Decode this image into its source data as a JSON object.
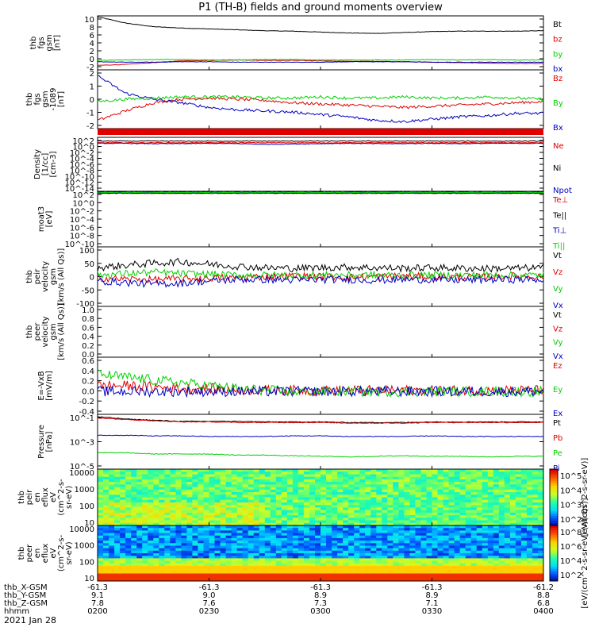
{
  "title": "P1 (TH-B) fields and ground moments overview",
  "date": "2021 Jan 28",
  "colors": {
    "black": "#000000",
    "red": "#e00000",
    "green": "#00d000",
    "blue": "#0000c0",
    "magenta": "#c000c0",
    "axis": "#000000"
  },
  "chart_data": [
    {
      "type": "line",
      "id": "p1",
      "ylabel": [
        "thb",
        "fgs",
        "gsm",
        "[nT]"
      ],
      "yticks": [
        "10",
        "8",
        "6",
        "4",
        "2",
        "0",
        "-2"
      ],
      "ylim": [
        -2,
        10
      ],
      "series": [
        {
          "name": "Bt",
          "color": "black",
          "values": [
            9.8,
            8.4,
            7.6,
            7.3,
            7.1,
            6.9,
            6.7,
            6.6,
            6.4,
            6.2,
            6.1,
            6.3,
            6.5,
            6.6,
            6.6,
            6.6,
            6.7
          ]
        },
        {
          "name": "bz",
          "color": "red",
          "values": [
            -1.0,
            -0.8,
            -0.4,
            0.0,
            0.1,
            0.2,
            0.1,
            0.1,
            0.0,
            -0.1,
            -0.1,
            -0.2,
            -0.3,
            -0.4,
            -0.5,
            -0.6,
            -0.6
          ]
        },
        {
          "name": "by",
          "color": "green",
          "values": [
            0.1,
            0.2,
            0.3,
            0.3,
            0.2,
            0.2,
            0.3,
            0.3,
            0.2,
            0.2,
            0.2,
            0.2,
            0.3,
            0.2,
            0.3,
            0.2,
            0.2
          ]
        },
        {
          "name": "bx",
          "color": "blue",
          "values": [
            -0.2,
            -0.3,
            -0.3,
            -0.2,
            -0.2,
            -0.3,
            -0.3,
            -0.3,
            -0.3,
            -0.2,
            -0.2,
            -0.2,
            -0.3,
            -0.3,
            -0.3,
            -0.3,
            -0.3
          ]
        }
      ]
    },
    {
      "type": "line",
      "id": "p2",
      "ylabel": [
        "thb",
        "fgs",
        "gsm",
        "-1089",
        "[nT]"
      ],
      "yticks": [
        "2",
        "1",
        "0",
        "-1",
        "-2"
      ],
      "ylim": [
        -2.5,
        2.5
      ],
      "series": [
        {
          "name": "Bz",
          "color": "red",
          "values": [
            -1.8,
            -1.0,
            -0.3,
            0.0,
            0.1,
            0.0,
            -0.1,
            -0.3,
            -0.4,
            -0.5,
            -0.6,
            -0.7,
            -0.6,
            -0.5,
            -0.4,
            -0.3,
            -0.2
          ]
        },
        {
          "name": "By",
          "color": "green",
          "values": [
            -0.2,
            0.0,
            0.1,
            0.2,
            0.2,
            0.2,
            0.1,
            0.1,
            0.2,
            0.1,
            0.1,
            0.2,
            0.1,
            0.1,
            0.2,
            0.1,
            0.0
          ]
        },
        {
          "name": "Bx",
          "color": "blue",
          "values": [
            2.0,
            0.5,
            0.0,
            -0.3,
            -0.7,
            -0.9,
            -1.0,
            -1.1,
            -1.3,
            -1.5,
            -1.8,
            -1.9,
            -1.7,
            -1.5,
            -1.4,
            -1.2,
            -1.2
          ]
        }
      ]
    },
    {
      "type": "line",
      "id": "p3",
      "ylabel": [
        "Density",
        "[1/cc]",
        "[cm-3]"
      ],
      "yticks": [
        "10^2",
        "10^0",
        "10^-2",
        "10^-4",
        "10^-6",
        "10^-8",
        "10^-10",
        "10^-12",
        "10^-14"
      ],
      "ylim": [
        -15,
        2
      ],
      "log": true,
      "series": [
        {
          "name": "Ne",
          "color": "red",
          "values": [
            0.3,
            0.3,
            0.3,
            0.3,
            0.3,
            0.3,
            0.3,
            0.3,
            0.3,
            0.3,
            0.3,
            0.3,
            0.3,
            0.3,
            0.3,
            0.3,
            0.3
          ]
        },
        {
          "name": "Ni",
          "color": "black",
          "values": [
            0.8,
            0.8,
            0.8,
            0.8,
            0.8,
            0.8,
            0.8,
            0.8,
            0.8,
            0.8,
            0.8,
            0.8,
            0.8,
            0.8,
            0.8,
            0.8,
            0.8
          ]
        },
        {
          "name": "Npot",
          "color": "blue",
          "values": [
            0.1,
            0.1,
            0.0,
            0.0,
            0.1,
            0.0,
            -0.2,
            -0.1,
            0.0,
            0.1,
            0.0,
            0.0,
            0.1,
            0.0,
            0.1,
            0.1,
            0.1
          ]
        }
      ]
    },
    {
      "type": "line",
      "id": "p4",
      "ylabel": [
        "moat3",
        "[eV]"
      ],
      "yticks": [
        "10^2",
        "10^0",
        "10^-2",
        "10^-4",
        "10^-6",
        "10^-8",
        "10^-10"
      ],
      "ylim": [
        -10,
        3
      ],
      "log": true,
      "series": [
        {
          "name": "Te⊥",
          "color": "red",
          "values": [
            2.5,
            2.5,
            2.5,
            2.5,
            2.5,
            2.5,
            2.5,
            2.5,
            2.5,
            2.5,
            2.5,
            2.5,
            2.5,
            2.5,
            2.5,
            2.5,
            2.5
          ]
        },
        {
          "name": "Te||",
          "color": "black",
          "values": [
            2.6,
            2.6,
            2.6,
            2.6,
            2.6,
            2.6,
            2.6,
            2.6,
            2.6,
            2.6,
            2.6,
            2.6,
            2.6,
            2.6,
            2.6,
            2.6,
            2.6
          ]
        },
        {
          "name": "Ti⊥",
          "color": "blue",
          "values": [
            2.8,
            2.8,
            2.8,
            2.8,
            2.8,
            2.8,
            2.8,
            2.8,
            2.8,
            2.8,
            2.8,
            2.8,
            2.8,
            2.8,
            2.8,
            2.8,
            2.8
          ]
        },
        {
          "name": "Ti||",
          "color": "green",
          "values": [
            2.7,
            2.7,
            2.7,
            2.7,
            2.7,
            2.7,
            2.7,
            2.7,
            2.7,
            2.7,
            2.7,
            2.7,
            2.7,
            2.7,
            2.7,
            2.7,
            2.7
          ]
        }
      ]
    },
    {
      "type": "line",
      "id": "p5",
      "ylabel": [
        "thb",
        "peir",
        "velocity",
        "gsm",
        "[km/s (All Qs)]"
      ],
      "yticks": [
        "100",
        "50",
        "0",
        "-50",
        "-100"
      ],
      "ylim": [
        -100,
        100
      ],
      "series": [
        {
          "name": "Vt",
          "color": "black",
          "values": [
            30,
            38,
            45,
            50,
            42,
            35,
            30,
            28,
            30,
            32,
            30,
            28,
            30,
            28,
            27,
            28,
            30
          ]
        },
        {
          "name": "Vz",
          "color": "red",
          "values": [
            -5,
            -8,
            -10,
            -8,
            -5,
            -3,
            0,
            2,
            0,
            -2,
            0,
            2,
            0,
            -2,
            0,
            2,
            0
          ]
        },
        {
          "name": "Vy",
          "color": "green",
          "values": [
            5,
            10,
            15,
            10,
            8,
            5,
            5,
            5,
            5,
            5,
            5,
            5,
            5,
            5,
            5,
            5,
            5
          ]
        },
        {
          "name": "Vx",
          "color": "blue",
          "values": [
            -15,
            -20,
            -25,
            -22,
            -15,
            -10,
            -10,
            -12,
            -10,
            -10,
            -12,
            -10,
            -10,
            -12,
            -10,
            -10,
            -10
          ]
        }
      ]
    },
    {
      "type": "line",
      "id": "p6",
      "ylabel": [
        "thb",
        "peer",
        "velocity",
        "gsm",
        "[km/s (All Qs)]"
      ],
      "yticks": [
        "1.0",
        "0.8",
        "0.6",
        "0.4",
        "0.2",
        "0.0"
      ],
      "ylim": [
        0,
        1
      ],
      "series": [
        {
          "name": "Vt",
          "color": "black",
          "values": []
        },
        {
          "name": "Vz",
          "color": "red",
          "values": []
        },
        {
          "name": "Vy",
          "color": "green",
          "values": []
        },
        {
          "name": "Vx",
          "color": "blue",
          "values": []
        }
      ]
    },
    {
      "type": "line",
      "id": "p7",
      "ylabel": [
        "E=-VxB",
        "[mV/m]"
      ],
      "yticks": [
        "0.6",
        "0.4",
        "0.2",
        "0.0",
        "-0.2",
        "-0.4"
      ],
      "ylim": [
        -0.4,
        0.6
      ],
      "series": [
        {
          "name": "Ez",
          "color": "red",
          "values": [
            0.1,
            0.1,
            0.08,
            0.05,
            0.05,
            0.03,
            0.02,
            0.02,
            0.02,
            0.02,
            0.02,
            0.02,
            0.02,
            0.02,
            0.02,
            0.02,
            0.02
          ]
        },
        {
          "name": "Ey",
          "color": "green",
          "values": [
            0.3,
            0.25,
            0.2,
            0.15,
            0.1,
            0.05,
            0.02,
            0.0,
            0.0,
            0.0,
            0.0,
            0.0,
            0.0,
            0.0,
            0.0,
            0.0,
            0.0
          ]
        },
        {
          "name": "Ex",
          "color": "blue",
          "values": [
            0,
            0,
            0,
            0,
            0,
            0,
            0,
            0,
            0,
            0,
            0,
            0,
            0,
            0,
            0,
            0,
            0
          ]
        }
      ]
    },
    {
      "type": "line",
      "id": "p8",
      "ylabel": [
        "Pressure",
        "[nPa]"
      ],
      "yticks": [
        "10^-1",
        "10^-3",
        "10^-5"
      ],
      "ylim": [
        -5.5,
        -0.8
      ],
      "log": true,
      "series": [
        {
          "name": "Pt",
          "color": "black",
          "values": [
            -1.0,
            -1.2,
            -1.3,
            -1.4,
            -1.4,
            -1.4,
            -1.45,
            -1.45,
            -1.45,
            -1.5,
            -1.5,
            -1.5,
            -1.45,
            -1.45,
            -1.45,
            -1.45,
            -1.45
          ]
        },
        {
          "name": "Pb",
          "color": "red",
          "values": [
            -1.1,
            -1.25,
            -1.35,
            -1.45,
            -1.45,
            -1.5,
            -1.5,
            -1.5,
            -1.5,
            -1.55,
            -1.55,
            -1.55,
            -1.5,
            -1.5,
            -1.5,
            -1.5,
            -1.5
          ]
        },
        {
          "name": "Pe",
          "color": "green",
          "values": [
            -4.1,
            -4.1,
            -4.2,
            -4.2,
            -4.2,
            -4.3,
            -4.3,
            -4.35,
            -4.4,
            -4.45,
            -4.4,
            -4.35,
            -4.4,
            -4.4,
            -4.45,
            -4.4,
            -4.4
          ]
        },
        {
          "name": "Pi",
          "color": "blue",
          "values": [
            -2.6,
            -2.6,
            -2.65,
            -2.65,
            -2.7,
            -2.7,
            -2.7,
            -2.65,
            -2.65,
            -2.7,
            -2.7,
            -2.7,
            -2.65,
            -2.7,
            -2.7,
            -2.7,
            -2.7
          ]
        }
      ]
    },
    {
      "type": "heatmap",
      "id": "p9",
      "ylabel": [
        "thb",
        "peir",
        "en",
        "eflux",
        "eV",
        "(cm^2-s-",
        "sr-eV)"
      ],
      "yticks": [
        "10000",
        "1000",
        "100",
        "10"
      ],
      "colorbar": {
        "label": "[eV/(cm^2-s-sr-eV)]",
        "ticks": [
          "10^5",
          "10^4",
          "10^3",
          "10^2"
        ]
      }
    },
    {
      "type": "heatmap",
      "id": "p10",
      "ylabel": [
        "thb",
        "peer",
        "en",
        "eflux",
        "eV",
        "(cm^2-s-",
        "sr-eV)"
      ],
      "yticks": [
        "10000",
        "1000",
        "100",
        "10"
      ],
      "colorbar": {
        "label": "[eV/(cm^2-s-sr-eV) (All Qs)]",
        "ticks": [
          "10^8",
          "10^6",
          "10^4",
          "10^2"
        ]
      }
    }
  ],
  "xaxis": {
    "rows": [
      {
        "label": "thb_X-GSM",
        "values": [
          "-61.3",
          "-61.3",
          "-61.3",
          "-61.3",
          "-61.2"
        ]
      },
      {
        "label": "thb_Y-GSM",
        "values": [
          "9.1",
          "9.0",
          "8.9",
          "8.9",
          "8.8"
        ]
      },
      {
        "label": "thb_Z-GSM",
        "values": [
          "7.8",
          "7.6",
          "7.3",
          "7.1",
          "6.8"
        ]
      },
      {
        "label": "hhmm",
        "values": [
          "0200",
          "0230",
          "0300",
          "0330",
          "0400"
        ]
      }
    ]
  }
}
